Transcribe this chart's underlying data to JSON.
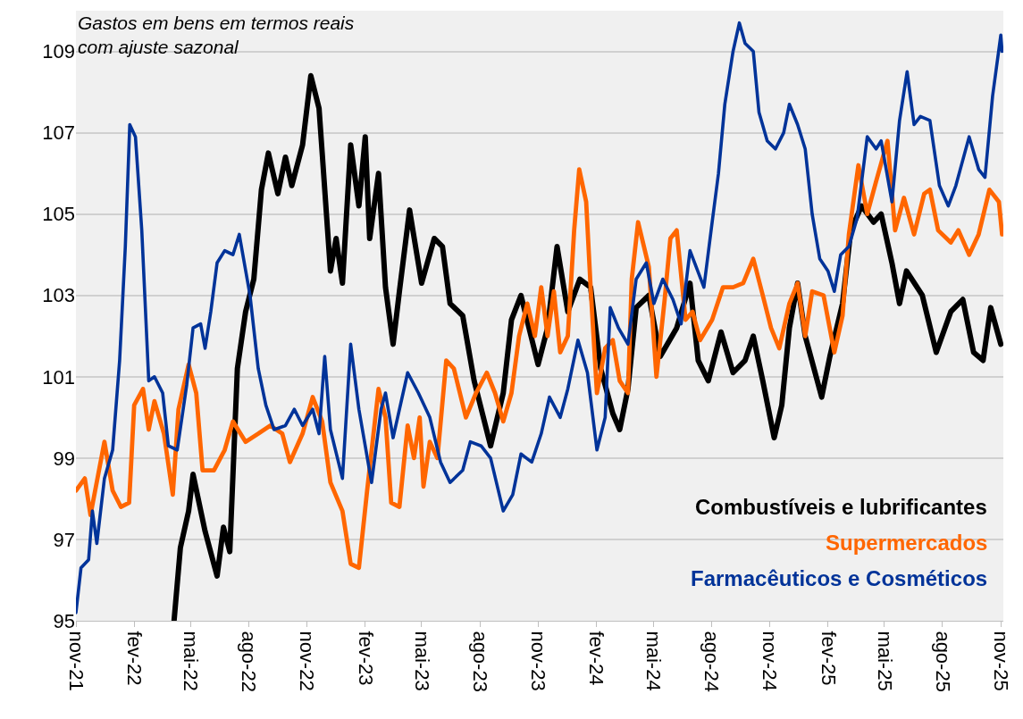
{
  "chart_data": {
    "type": "line",
    "title": "Gastos em bens em termos reais\ncom ajuste sazonal",
    "xlim": [
      "2021-11-01",
      "2025-11-05"
    ],
    "ylim": [
      95,
      110
    ],
    "yticks": [
      95,
      97,
      99,
      101,
      103,
      105,
      107,
      109
    ],
    "xticks": [
      {
        "value": "2021-11-01",
        "label": "nov-21"
      },
      {
        "value": "2022-02-01",
        "label": "fev-22"
      },
      {
        "value": "2022-05-01",
        "label": "mai-22"
      },
      {
        "value": "2022-08-01",
        "label": "ago-22"
      },
      {
        "value": "2022-11-01",
        "label": "nov-22"
      },
      {
        "value": "2023-02-01",
        "label": "fev-23"
      },
      {
        "value": "2023-05-01",
        "label": "mai-23"
      },
      {
        "value": "2023-08-01",
        "label": "ago-23"
      },
      {
        "value": "2023-11-01",
        "label": "nov-23"
      },
      {
        "value": "2024-02-01",
        "label": "fev-24"
      },
      {
        "value": "2024-05-01",
        "label": "mai-24"
      },
      {
        "value": "2024-08-01",
        "label": "ago-24"
      },
      {
        "value": "2024-11-01",
        "label": "nov-24"
      },
      {
        "value": "2025-02-01",
        "label": "fev-25"
      },
      {
        "value": "2025-05-01",
        "label": "mai-25"
      },
      {
        "value": "2025-08-01",
        "label": "ago-25"
      },
      {
        "value": "2025-11-01",
        "label": "nov-25"
      }
    ],
    "grid": "y",
    "legend": "bottom right",
    "marker": "none",
    "line_style": "solid",
    "series": [
      {
        "name": "Combustíveis e lubrificantes",
        "color": "#000000",
        "x": [
          "2022-04-05",
          "2022-04-15",
          "2022-04-28",
          "2022-05-05",
          "2022-05-24",
          "2022-06-12",
          "2022-06-22",
          "2022-07-02",
          "2022-07-14",
          "2022-07-27",
          "2022-08-09",
          "2022-08-21",
          "2022-09-01",
          "2022-09-16",
          "2022-09-28",
          "2022-10-08",
          "2022-10-25",
          "2022-11-07",
          "2022-11-20",
          "2022-11-25",
          "2022-12-08",
          "2022-12-17",
          "2022-12-27",
          "2023-01-09",
          "2023-01-22",
          "2023-02-01",
          "2023-02-08",
          "2023-02-22",
          "2023-03-05",
          "2023-03-17",
          "2023-03-27",
          "2023-04-12",
          "2023-05-01",
          "2023-05-21",
          "2023-06-03",
          "2023-06-15",
          "2023-07-05",
          "2023-07-23",
          "2023-08-18",
          "2023-09-07",
          "2023-09-20",
          "2023-10-05",
          "2023-11-01",
          "2023-11-16",
          "2023-12-01",
          "2023-12-18",
          "2024-01-06",
          "2024-01-23",
          "2024-02-08",
          "2024-02-27",
          "2024-03-09",
          "2024-03-22",
          "2024-04-04",
          "2024-04-24",
          "2024-05-12",
          "2024-06-07",
          "2024-06-28",
          "2024-07-11",
          "2024-07-27",
          "2024-08-16",
          "2024-09-04",
          "2024-09-23",
          "2024-10-06",
          "2024-10-21",
          "2024-11-08",
          "2024-11-20",
          "2024-12-02",
          "2024-12-15",
          "2024-12-27",
          "2025-01-22",
          "2025-02-04",
          "2025-02-24",
          "2025-03-09",
          "2025-03-26",
          "2025-04-14",
          "2025-04-26",
          "2025-05-13",
          "2025-05-25",
          "2025-06-05",
          "2025-06-30",
          "2025-07-22",
          "2025-08-14",
          "2025-09-02",
          "2025-09-19",
          "2025-10-04",
          "2025-10-16",
          "2025-11-01"
        ],
        "values": [
          95.0,
          96.8,
          97.7,
          98.6,
          97.2,
          96.1,
          97.3,
          96.7,
          101.2,
          102.6,
          103.4,
          105.6,
          106.5,
          105.5,
          106.4,
          105.7,
          106.7,
          108.4,
          107.6,
          106.5,
          103.6,
          104.4,
          103.3,
          106.7,
          105.2,
          106.9,
          104.4,
          106.0,
          103.2,
          101.8,
          103.1,
          105.1,
          103.3,
          104.4,
          104.2,
          102.8,
          102.5,
          100.9,
          99.3,
          100.6,
          102.4,
          103.0,
          101.3,
          102.2,
          104.2,
          102.6,
          103.4,
          103.2,
          101.2,
          100.1,
          99.7,
          100.7,
          102.7,
          103.0,
          101.5,
          102.2,
          103.3,
          101.4,
          100.9,
          102.1,
          101.1,
          101.4,
          102.0,
          100.9,
          99.5,
          100.3,
          102.2,
          103.3,
          102.0,
          100.5,
          101.5,
          102.8,
          104.6,
          105.2,
          104.8,
          105.0,
          103.8,
          102.8,
          103.6,
          103.0,
          101.6,
          102.6,
          102.9,
          101.6,
          101.4,
          102.7,
          101.8
        ]
      },
      {
        "name": "Supermercados",
        "color": "#ff6600",
        "x": [
          "2021-11-01",
          "2021-11-15",
          "2021-11-24",
          "2021-12-16",
          "2021-12-29",
          "2022-01-11",
          "2022-01-24",
          "2022-02-01",
          "2022-02-15",
          "2022-02-24",
          "2022-03-05",
          "2022-03-20",
          "2022-04-03",
          "2022-04-12",
          "2022-04-28",
          "2022-05-10",
          "2022-05-20",
          "2022-06-07",
          "2022-06-24",
          "2022-07-07",
          "2022-07-27",
          "2022-08-16",
          "2022-09-04",
          "2022-09-23",
          "2022-10-05",
          "2022-10-25",
          "2022-11-10",
          "2022-11-25",
          "2022-12-08",
          "2022-12-27",
          "2023-01-09",
          "2023-01-22",
          "2023-02-04",
          "2023-02-22",
          "2023-03-05",
          "2023-03-14",
          "2023-03-27",
          "2023-04-09",
          "2023-04-19",
          "2023-04-28",
          "2023-05-04",
          "2023-05-14",
          "2023-05-26",
          "2023-06-09",
          "2023-06-21",
          "2023-07-10",
          "2023-07-26",
          "2023-08-12",
          "2023-08-25",
          "2023-09-07",
          "2023-09-20",
          "2023-10-02",
          "2023-10-15",
          "2023-10-27",
          "2023-11-06",
          "2023-11-16",
          "2023-11-26",
          "2023-12-06",
          "2023-12-18",
          "2023-12-28",
          "2024-01-05",
          "2024-01-16",
          "2024-01-23",
          "2024-02-02",
          "2024-02-15",
          "2024-02-27",
          "2024-03-09",
          "2024-03-22",
          "2024-03-28",
          "2024-04-07",
          "2024-04-24",
          "2024-05-06",
          "2024-05-19",
          "2024-05-28",
          "2024-06-07",
          "2024-06-21",
          "2024-07-02",
          "2024-07-14",
          "2024-08-02",
          "2024-08-19",
          "2024-09-04",
          "2024-09-20",
          "2024-10-06",
          "2024-10-21",
          "2024-11-03",
          "2024-11-16",
          "2024-12-02",
          "2024-12-15",
          "2024-12-27",
          "2025-01-07",
          "2025-01-25",
          "2025-02-11",
          "2025-02-24",
          "2025-03-06",
          "2025-03-21",
          "2025-04-04",
          "2025-04-18",
          "2025-05-06",
          "2025-05-18",
          "2025-06-01",
          "2025-06-17",
          "2025-07-03",
          "2025-07-12",
          "2025-07-25",
          "2025-08-14",
          "2025-08-26",
          "2025-09-12",
          "2025-09-27",
          "2025-10-14",
          "2025-10-29",
          "2025-11-03"
        ],
        "values": [
          98.2,
          98.5,
          97.6,
          99.4,
          98.2,
          97.8,
          97.9,
          100.3,
          100.7,
          99.7,
          100.4,
          99.6,
          98.1,
          100.2,
          101.3,
          100.6,
          98.7,
          98.7,
          99.2,
          99.9,
          99.4,
          99.6,
          99.8,
          99.6,
          98.9,
          99.6,
          100.5,
          99.9,
          98.4,
          97.7,
          96.4,
          96.3,
          98.2,
          100.7,
          100.0,
          97.9,
          97.8,
          99.8,
          99.0,
          100.0,
          98.3,
          99.4,
          99.0,
          101.4,
          101.2,
          100.0,
          100.6,
          101.1,
          100.6,
          99.9,
          100.6,
          102.0,
          102.8,
          102.0,
          103.2,
          102.0,
          103.1,
          101.6,
          102.0,
          104.6,
          106.1,
          105.3,
          103.2,
          100.6,
          101.7,
          101.9,
          100.9,
          100.6,
          103.4,
          104.8,
          103.7,
          101.0,
          102.9,
          104.4,
          104.6,
          102.4,
          102.6,
          101.9,
          102.4,
          103.2,
          103.2,
          103.3,
          103.9,
          103.0,
          102.2,
          101.7,
          102.8,
          103.3,
          102.0,
          103.1,
          103.0,
          101.6,
          102.5,
          104.5,
          106.2,
          105.0,
          105.8,
          106.8,
          104.6,
          105.4,
          104.5,
          105.5,
          105.6,
          104.6,
          104.3,
          104.6,
          104.0,
          104.5,
          105.6,
          105.3,
          104.5
        ]
      },
      {
        "name": "Farmacêuticos e Cosméticos",
        "color": "#003399",
        "x": [
          "2021-11-01",
          "2021-11-09",
          "2021-11-21",
          "2021-11-27",
          "2021-12-04",
          "2021-12-16",
          "2021-12-29",
          "2022-01-09",
          "2022-01-18",
          "2022-01-25",
          "2022-02-03",
          "2022-02-13",
          "2022-02-24",
          "2022-03-05",
          "2022-03-18",
          "2022-03-27",
          "2022-04-10",
          "2022-04-25",
          "2022-05-05",
          "2022-05-17",
          "2022-05-24",
          "2022-06-02",
          "2022-06-12",
          "2022-06-24",
          "2022-07-07",
          "2022-07-17",
          "2022-08-03",
          "2022-08-16",
          "2022-08-28",
          "2022-09-10",
          "2022-09-28",
          "2022-10-12",
          "2022-10-25",
          "2022-11-10",
          "2022-11-20",
          "2022-11-29",
          "2022-12-08",
          "2022-12-27",
          "2023-01-09",
          "2023-01-22",
          "2023-02-11",
          "2023-02-26",
          "2023-03-05",
          "2023-03-17",
          "2023-04-09",
          "2023-04-26",
          "2023-05-14",
          "2023-05-31",
          "2023-06-15",
          "2023-07-05",
          "2023-07-17",
          "2023-08-03",
          "2023-08-18",
          "2023-09-07",
          "2023-09-22",
          "2023-10-05",
          "2023-10-22",
          "2023-11-06",
          "2023-11-19",
          "2023-12-06",
          "2023-12-18",
          "2024-01-03",
          "2024-01-18",
          "2024-02-02",
          "2024-02-15",
          "2024-02-23",
          "2024-03-07",
          "2024-03-22",
          "2024-04-04",
          "2024-04-20",
          "2024-05-02",
          "2024-05-16",
          "2024-06-01",
          "2024-06-14",
          "2024-06-28",
          "2024-07-20",
          "2024-08-02",
          "2024-08-12",
          "2024-08-22",
          "2024-09-04",
          "2024-09-14",
          "2024-09-23",
          "2024-10-06",
          "2024-10-15",
          "2024-10-28",
          "2024-11-10",
          "2024-11-23",
          "2024-12-02",
          "2024-12-15",
          "2024-12-27",
          "2025-01-07",
          "2025-01-19",
          "2025-02-01",
          "2025-02-11",
          "2025-02-21",
          "2025-03-06",
          "2025-03-19",
          "2025-04-04",
          "2025-04-18",
          "2025-04-26",
          "2025-05-13",
          "2025-05-25",
          "2025-06-06",
          "2025-06-17",
          "2025-06-27",
          "2025-07-12",
          "2025-07-27",
          "2025-08-10",
          "2025-08-22",
          "2025-09-12",
          "2025-09-27",
          "2025-10-07",
          "2025-10-19",
          "2025-11-01",
          "2025-11-03"
        ],
        "values": [
          95.2,
          96.3,
          96.5,
          97.7,
          96.9,
          98.5,
          99.2,
          101.4,
          104.2,
          107.2,
          106.9,
          104.6,
          100.9,
          101.0,
          100.6,
          99.3,
          99.2,
          100.8,
          102.2,
          102.3,
          101.7,
          102.6,
          103.8,
          104.1,
          104.0,
          104.5,
          103.0,
          101.2,
          100.3,
          99.7,
          99.8,
          100.2,
          99.8,
          100.2,
          99.6,
          101.5,
          99.7,
          98.5,
          101.8,
          100.2,
          98.4,
          100.2,
          100.6,
          99.5,
          101.1,
          100.6,
          100.0,
          98.9,
          98.4,
          98.7,
          99.4,
          99.3,
          99.0,
          97.7,
          98.1,
          99.1,
          98.9,
          99.6,
          100.5,
          100.0,
          100.7,
          101.9,
          101.1,
          99.2,
          100.0,
          102.7,
          102.2,
          101.8,
          103.4,
          103.8,
          102.8,
          103.4,
          102.9,
          102.3,
          104.1,
          103.2,
          104.8,
          106.0,
          107.7,
          109.0,
          109.7,
          109.2,
          109.0,
          107.5,
          106.8,
          106.6,
          107.0,
          107.7,
          107.2,
          106.6,
          105.0,
          103.9,
          103.6,
          103.1,
          104.0,
          104.2,
          104.9,
          106.9,
          106.6,
          106.8,
          105.3,
          107.3,
          108.5,
          107.2,
          107.4,
          107.3,
          105.7,
          105.2,
          105.7,
          106.9,
          106.1,
          105.9,
          107.9,
          109.4,
          109.0
        ]
      }
    ]
  }
}
